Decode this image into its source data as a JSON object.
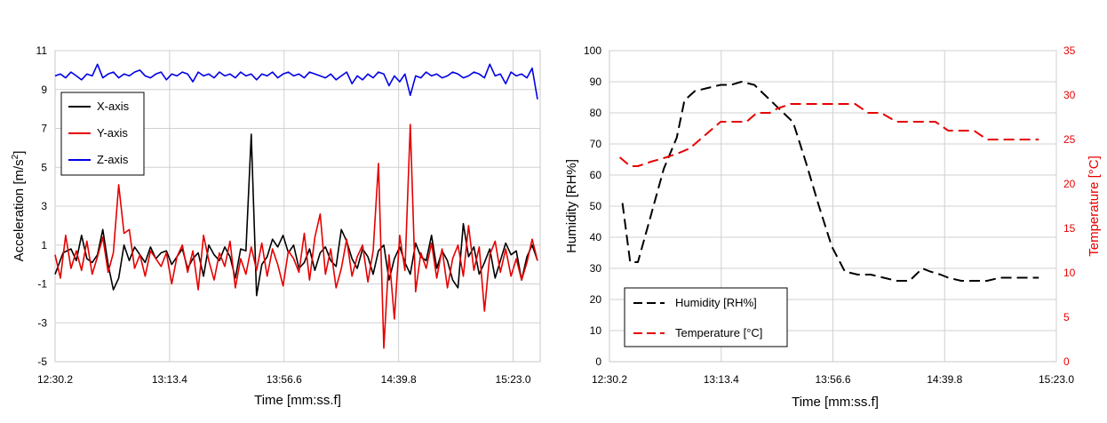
{
  "chart_data": [
    {
      "type": "line",
      "xlabel": "Time [mm:ss.f]",
      "ylabel": "Acceleration [m/s²]",
      "ylabel_main": "Acceleration [m/s",
      "ylabel_sup": "2",
      "ylabel_end": "]",
      "xticks": [
        "12:30.2",
        "13:13.4",
        "13:56.6",
        "14:39.8",
        "15:23.0"
      ],
      "xlim": [
        0,
        183
      ],
      "ylim": [
        -5,
        11
      ],
      "yticks": [
        "-5",
        "-3",
        "-1",
        "1",
        "3",
        "5",
        "7",
        "9",
        "11"
      ],
      "grid": true,
      "legend_position": "top-left",
      "series": [
        {
          "name": "X-axis",
          "color": "#000000",
          "x": [
            0,
            3,
            6,
            8,
            10,
            12,
            14,
            16,
            18,
            20,
            22,
            24,
            26,
            28,
            30,
            32,
            34,
            36,
            38,
            40,
            42,
            44,
            46,
            48,
            50,
            52,
            54,
            56,
            58,
            60,
            62,
            64,
            66,
            68,
            70,
            72,
            74,
            76,
            78,
            80,
            82,
            84,
            86,
            88,
            90,
            92,
            94,
            96,
            98,
            100,
            102,
            104,
            106,
            108,
            110,
            112,
            114,
            116,
            118,
            120,
            122,
            124,
            126,
            128,
            130,
            132,
            134,
            136,
            138,
            140,
            142,
            144,
            146,
            148,
            150,
            152,
            154,
            156,
            158,
            160,
            162,
            164,
            166,
            168,
            170,
            172,
            174,
            176,
            178,
            180,
            182
          ],
          "y": [
            -0.5,
            0.6,
            0.8,
            0.2,
            1.5,
            0.3,
            0.1,
            0.5,
            1.8,
            0.0,
            -1.3,
            -0.7,
            1.0,
            0.2,
            0.9,
            0.5,
            0.1,
            0.9,
            0.3,
            0.6,
            0.7,
            0.0,
            0.4,
            0.8,
            -0.2,
            0.3,
            0.6,
            -0.6,
            1.0,
            0.5,
            0.2,
            0.9,
            0.4,
            -0.7,
            0.8,
            0.7,
            6.7,
            -1.6,
            0.0,
            0.4,
            1.3,
            0.9,
            1.5,
            0.6,
            1.0,
            -0.2,
            0.1,
            0.8,
            -0.3,
            0.6,
            0.9,
            0.2,
            -0.1,
            1.8,
            1.2,
            0.3,
            -0.2,
            0.8,
            0.4,
            -0.5,
            0.7,
            1.0,
            -0.8,
            0.3,
            0.9,
            0.1,
            -0.5,
            1.1,
            0.4,
            0.2,
            1.5,
            -0.2,
            0.7,
            0.2,
            -0.8,
            -1.2,
            2.1,
            0.4,
            0.9,
            -0.5,
            0.1,
            0.8,
            -0.7,
            0.2,
            1.1,
            0.5,
            0.7,
            -0.8,
            0.4,
            1.0,
            0.2
          ]
        },
        {
          "name": "Y-axis",
          "color": "#e60000",
          "x": [
            0,
            2,
            4,
            6,
            8,
            10,
            12,
            14,
            16,
            18,
            20,
            22,
            24,
            26,
            28,
            30,
            32,
            34,
            36,
            38,
            40,
            42,
            44,
            46,
            48,
            50,
            52,
            54,
            56,
            58,
            60,
            62,
            64,
            66,
            68,
            70,
            72,
            74,
            76,
            78,
            80,
            82,
            84,
            86,
            88,
            90,
            92,
            94,
            96,
            98,
            100,
            102,
            104,
            106,
            108,
            110,
            112,
            114,
            116,
            118,
            120,
            122,
            124,
            126,
            128,
            130,
            132,
            134,
            136,
            138,
            140,
            142,
            144,
            146,
            148,
            150,
            152,
            154,
            156,
            158,
            160,
            162,
            164,
            166,
            168,
            170,
            172,
            174,
            176,
            178,
            180,
            182
          ],
          "y": [
            0.5,
            -0.7,
            1.5,
            -0.2,
            0.7,
            -0.3,
            1.2,
            -0.5,
            0.4,
            1.4,
            -0.4,
            0.6,
            4.1,
            1.6,
            1.8,
            -0.2,
            0.5,
            -0.6,
            0.7,
            0.3,
            -0.1,
            0.6,
            -1.0,
            0.4,
            1.0,
            -0.4,
            0.7,
            -1.3,
            1.5,
            0.2,
            -0.8,
            0.6,
            -0.1,
            1.2,
            -1.2,
            0.3,
            -0.5,
            0.9,
            -0.3,
            1.1,
            -0.6,
            0.8,
            0.0,
            -1.1,
            0.7,
            0.3,
            -0.4,
            1.6,
            -0.8,
            1.4,
            2.6,
            -0.5,
            0.8,
            -1.2,
            -0.2,
            1.3,
            -0.6,
            0.4,
            1.0,
            -0.9,
            0.7,
            5.2,
            -4.3,
            0.5,
            -2.8,
            1.5,
            -0.3,
            7.2,
            -1.4,
            0.6,
            -0.2,
            1.1,
            -0.7,
            0.8,
            -1.2,
            0.3,
            1.0,
            -0.6,
            2.0,
            -0.3,
            0.9,
            -2.4,
            0.5,
            1.2,
            -0.4,
            0.8,
            -0.6,
            0.3,
            -0.8,
            0.1,
            1.3,
            0.2
          ]
        },
        {
          "name": "Z-axis",
          "color": "#0000e6",
          "x": [
            0,
            2,
            4,
            6,
            8,
            10,
            12,
            14,
            16,
            18,
            20,
            22,
            24,
            26,
            28,
            30,
            32,
            34,
            36,
            38,
            40,
            42,
            44,
            46,
            48,
            50,
            52,
            54,
            56,
            58,
            60,
            62,
            64,
            66,
            68,
            70,
            72,
            74,
            76,
            78,
            80,
            82,
            84,
            86,
            88,
            90,
            92,
            94,
            96,
            98,
            100,
            102,
            104,
            106,
            108,
            110,
            112,
            114,
            116,
            118,
            120,
            122,
            124,
            126,
            128,
            130,
            132,
            134,
            136,
            138,
            140,
            142,
            144,
            146,
            148,
            150,
            152,
            154,
            156,
            158,
            160,
            162,
            164,
            166,
            168,
            170,
            172,
            174,
            176,
            178,
            180,
            182
          ],
          "y": [
            9.7,
            9.8,
            9.6,
            9.9,
            9.7,
            9.5,
            9.8,
            9.7,
            10.3,
            9.6,
            9.8,
            9.9,
            9.6,
            9.8,
            9.7,
            9.9,
            10.0,
            9.7,
            9.6,
            9.8,
            9.9,
            9.5,
            9.8,
            9.7,
            9.9,
            9.8,
            9.4,
            9.9,
            9.7,
            9.8,
            9.6,
            9.9,
            9.7,
            9.8,
            9.6,
            9.9,
            9.7,
            9.8,
            9.5,
            9.8,
            9.7,
            9.9,
            9.6,
            9.8,
            9.9,
            9.7,
            9.8,
            9.6,
            9.9,
            9.8,
            9.7,
            9.6,
            9.8,
            9.5,
            9.7,
            9.9,
            9.3,
            9.7,
            9.5,
            9.8,
            9.6,
            9.9,
            9.8,
            9.2,
            9.7,
            9.4,
            9.8,
            8.7,
            9.7,
            9.6,
            9.9,
            9.7,
            9.8,
            9.6,
            9.7,
            9.9,
            9.8,
            9.6,
            9.7,
            9.9,
            9.8,
            9.6,
            10.3,
            9.7,
            9.8,
            9.3,
            9.9,
            9.7,
            9.8,
            9.6,
            10.1,
            8.5
          ]
        }
      ]
    },
    {
      "type": "line",
      "xlabel": "Time [mm:ss.f]",
      "ylabel": "Humidity [RH%]",
      "y2label": "Temperature [°C]",
      "xticks": [
        "12:30.2",
        "13:13.4",
        "13:56.6",
        "14:39.8",
        "15:23.0"
      ],
      "xlim": [
        0,
        172.8
      ],
      "ylim": [
        0,
        100
      ],
      "yticks": [
        "0",
        "10",
        "20",
        "30",
        "40",
        "50",
        "60",
        "70",
        "80",
        "90",
        "100"
      ],
      "y2lim": [
        0,
        35
      ],
      "y2ticks": [
        "0",
        "5",
        "10",
        "15",
        "20",
        "25",
        "30",
        "35"
      ],
      "y2color": "#e60000",
      "grid": true,
      "legend_position": "bottom-left",
      "series": [
        {
          "name": "Humidity [RH%]",
          "color": "#000000",
          "axis": "left",
          "x": [
            5,
            8,
            11,
            16,
            21,
            26,
            29,
            33,
            38,
            43,
            47,
            51,
            56,
            61,
            66,
            71,
            76,
            81,
            86,
            91,
            96,
            101,
            106,
            111,
            116,
            121,
            124,
            128,
            131,
            136,
            141,
            146,
            151,
            156,
            161,
            166
          ],
          "y": [
            51,
            32,
            32,
            47,
            62,
            72,
            84,
            87,
            88,
            89,
            89,
            90,
            89,
            85,
            81,
            77,
            64,
            50,
            37,
            29,
            28,
            28,
            27,
            26,
            26,
            30,
            29,
            28,
            27,
            26,
            26,
            26,
            27,
            27,
            27,
            27
          ]
        },
        {
          "name": "Temperature [°C]",
          "color": "#e60000",
          "axis": "right",
          "x": [
            4,
            8,
            11,
            16,
            22,
            27,
            31,
            35,
            39,
            43,
            48,
            53,
            57,
            62,
            65,
            70,
            76,
            81,
            86,
            91,
            95,
            100,
            105,
            111,
            116,
            121,
            126,
            131,
            136,
            141,
            146,
            151,
            156,
            161,
            166
          ],
          "y": [
            23,
            22,
            22,
            22.5,
            23,
            23.5,
            24,
            25,
            26,
            27,
            27,
            27,
            28,
            28,
            28.5,
            29,
            29,
            29,
            29,
            29,
            29,
            28,
            28,
            27,
            27,
            27,
            27,
            26,
            26,
            26,
            25,
            25,
            25,
            25,
            25
          ]
        }
      ]
    }
  ]
}
